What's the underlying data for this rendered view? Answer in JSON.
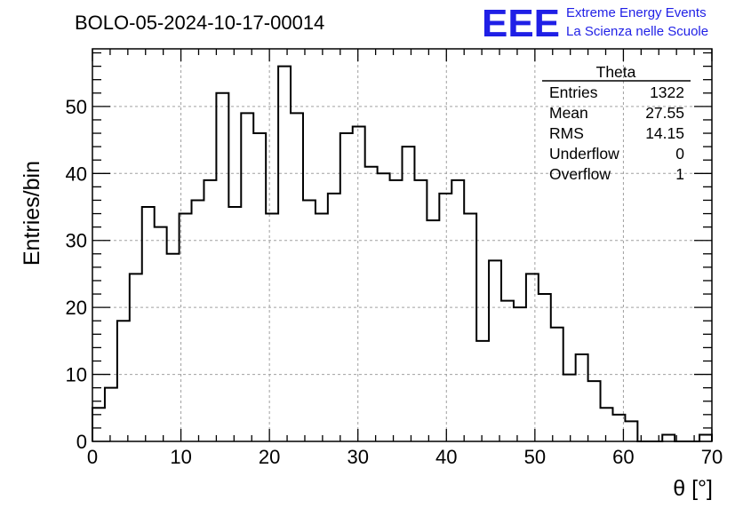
{
  "colors": {
    "logo": "#1f1fe6",
    "grid": "#a0a0a0",
    "line": "#000000",
    "background": "#ffffff"
  },
  "logo": {
    "mark": "EEE",
    "line1": "Extreme Energy Events",
    "line2": "La Scienza nelle Scuole"
  },
  "stats": {
    "name": "Theta",
    "rows": [
      {
        "label": "Entries",
        "value": "1322"
      },
      {
        "label": "Mean",
        "value": "27.55"
      },
      {
        "label": "RMS",
        "value": "14.15"
      },
      {
        "label": "Underflow",
        "value": "0"
      },
      {
        "label": "Overflow",
        "value": "1"
      }
    ]
  },
  "chart_data": {
    "type": "histogram",
    "title": "BOLO-05-2024-10-17-00014",
    "xlabel": "θ [°]",
    "ylabel": "Entries/bin",
    "xlim": [
      0,
      70
    ],
    "ylim": [
      0,
      58.6
    ],
    "bin_width": 1.4,
    "x_ticks": [
      0,
      10,
      20,
      30,
      40,
      50,
      60,
      70
    ],
    "y_ticks": [
      0,
      10,
      20,
      30,
      40,
      50
    ],
    "grid": true,
    "legend": "top-right",
    "values": [
      5,
      8,
      18,
      25,
      35,
      32,
      28,
      34,
      36,
      39,
      52,
      35,
      49,
      46,
      34,
      56,
      49,
      36,
      34,
      37,
      46,
      47,
      41,
      40,
      39,
      44,
      39,
      33,
      37,
      39,
      34,
      15,
      27,
      21,
      20,
      25,
      22,
      17,
      10,
      13,
      9,
      5,
      4,
      3,
      0,
      0,
      1,
      0,
      0,
      1
    ]
  }
}
